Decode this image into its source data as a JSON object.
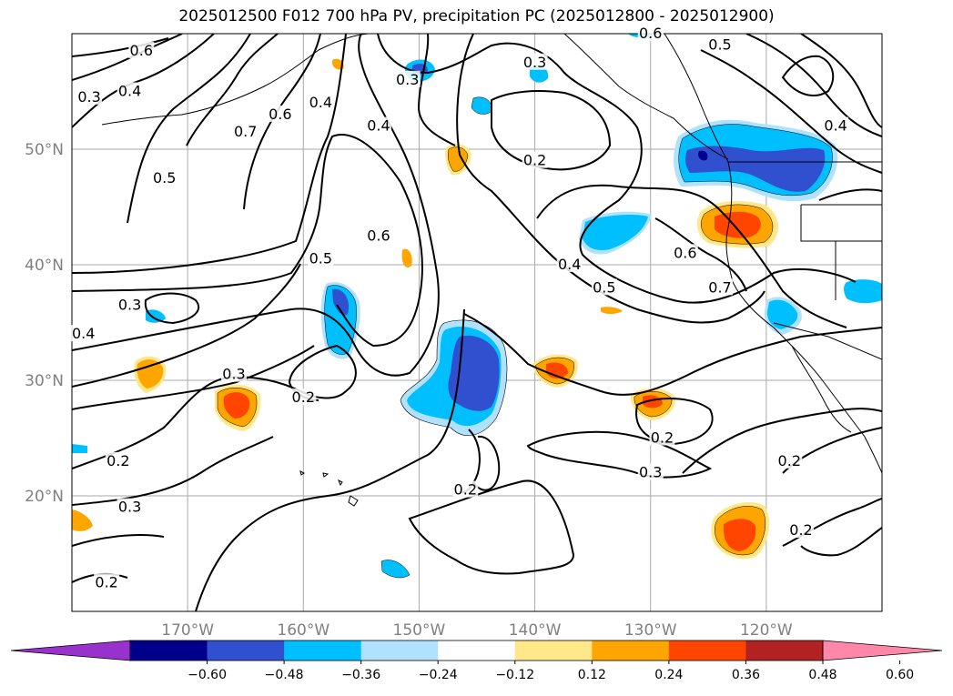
{
  "title": "2025012500 F012 700 hPa PV, precipitation PC (2025012800 - 2025012900)",
  "map": {
    "lat_labels": [
      "50°N",
      "40°N",
      "30°N",
      "20°N"
    ],
    "lon_labels": [
      "170°W",
      "160°W",
      "150°W",
      "140°W",
      "130°W",
      "120°W"
    ],
    "lat_values": [
      50,
      40,
      30,
      20
    ],
    "lon_values": [
      -170,
      -160,
      -150,
      -140,
      -130,
      -120
    ],
    "extent": {
      "lon_min": -180,
      "lon_max": -110,
      "lat_min": 10,
      "lat_max": 60
    },
    "gridline_color": "#aaaaaa",
    "contour_labels": [
      {
        "text": "0.6",
        "lon": -174,
        "lat": 58.5
      },
      {
        "text": "0.3",
        "lon": -178.5,
        "lat": 54.5
      },
      {
        "text": "0.4",
        "lon": -175,
        "lat": 55
      },
      {
        "text": "0.7",
        "lon": -165,
        "lat": 51.5
      },
      {
        "text": "0.6",
        "lon": -162,
        "lat": 53
      },
      {
        "text": "0.5",
        "lon": -172,
        "lat": 47.5
      },
      {
        "text": "0.4",
        "lon": -153.5,
        "lat": 52
      },
      {
        "text": "0.3",
        "lon": -151,
        "lat": 56
      },
      {
        "text": "0.4",
        "lon": -158.5,
        "lat": 54
      },
      {
        "text": "0.6",
        "lon": -153.5,
        "lat": 42.5
      },
      {
        "text": "0.5",
        "lon": -158.5,
        "lat": 40.5
      },
      {
        "text": "0.3",
        "lon": -140,
        "lat": 57.5
      },
      {
        "text": "0.2",
        "lon": -140,
        "lat": 49
      },
      {
        "text": "0.4",
        "lon": -137,
        "lat": 40
      },
      {
        "text": "0.5",
        "lon": -134,
        "lat": 38
      },
      {
        "text": "0.6",
        "lon": -127,
        "lat": 41
      },
      {
        "text": "0.7",
        "lon": -124,
        "lat": 38
      },
      {
        "text": "0.5",
        "lon": -124,
        "lat": 59
      },
      {
        "text": "0.6",
        "lon": -130,
        "lat": 60
      },
      {
        "text": "0.4",
        "lon": -114,
        "lat": 52
      },
      {
        "text": "0.3",
        "lon": -175,
        "lat": 36.5
      },
      {
        "text": "0.4",
        "lon": -179,
        "lat": 34
      },
      {
        "text": "0.3",
        "lon": -166,
        "lat": 30.5
      },
      {
        "text": "0.2",
        "lon": -160,
        "lat": 28.5
      },
      {
        "text": "0.2",
        "lon": -176,
        "lat": 23
      },
      {
        "text": "0.3",
        "lon": -175,
        "lat": 19
      },
      {
        "text": "0.2",
        "lon": -177,
        "lat": 12.5
      },
      {
        "text": "0.2",
        "lon": -146,
        "lat": 20.5
      },
      {
        "text": "0.2",
        "lon": -129,
        "lat": 25
      },
      {
        "text": "0.3",
        "lon": -130,
        "lat": 22
      },
      {
        "text": "0.2",
        "lon": -118,
        "lat": 23
      },
      {
        "text": "0.2",
        "lon": -117,
        "lat": 17
      }
    ]
  },
  "colorbar": {
    "ticks": [
      "−0.60",
      "−0.48",
      "−0.36",
      "−0.24",
      "−0.12",
      "0.12",
      "0.24",
      "0.36",
      "0.48",
      "0.60"
    ],
    "colors": [
      "#9932cc",
      "#00008b",
      "#3050d0",
      "#00bfff",
      "#b0e2ff",
      "#ffffff",
      "#ffe78a",
      "#ffa500",
      "#ff4500",
      "#b22222",
      "#ff88aa"
    ]
  }
}
